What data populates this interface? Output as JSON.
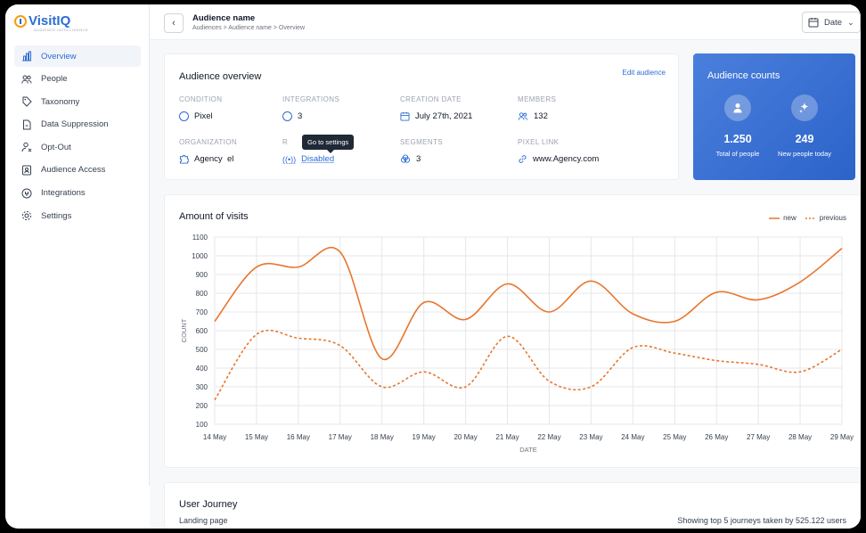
{
  "brand": {
    "name": "VisitIQ",
    "tagline": "AUDIENCE INTELLIGENCE"
  },
  "sidebar": {
    "items": [
      {
        "label": "Overview",
        "icon": "bar-chart-icon",
        "active": true
      },
      {
        "label": "People",
        "icon": "people-icon"
      },
      {
        "label": "Taxonomy",
        "icon": "tag-icon"
      },
      {
        "label": "Data Suppression",
        "icon": "file-icon"
      },
      {
        "label": "Opt-Out",
        "icon": "user-x-icon"
      },
      {
        "label": "Audience Access",
        "icon": "id-card-icon"
      },
      {
        "label": "Integrations",
        "icon": "plug-icon"
      },
      {
        "label": "Settings",
        "icon": "gear-icon"
      }
    ]
  },
  "header": {
    "title": "Audience name",
    "breadcrumb": "Audiences > Audience name > Overview",
    "date_label": "Date"
  },
  "overview": {
    "title": "Audience overview",
    "edit_label": "Edit audience",
    "fields": [
      {
        "label": "CONDITION",
        "value": "Pixel"
      },
      {
        "label": "INTEGRATIONS",
        "value": "3"
      },
      {
        "label": "CREATION DATE",
        "value": "July 27th, 2021"
      },
      {
        "label": "MEMBERS",
        "value": "132"
      },
      {
        "label": "ORGANIZATION",
        "value": "Agency  el"
      },
      {
        "label": "R",
        "value": "Disabled"
      },
      {
        "label": "SEGMENTS",
        "value": "3"
      },
      {
        "label": "PIXEL LINK",
        "value": "www.Agency.com"
      }
    ],
    "tooltip": "Go to settings"
  },
  "counts": {
    "title": "Audience counts",
    "total": "1.250",
    "total_label": "Total of people",
    "new": "249",
    "new_label": "New people today"
  },
  "chart": {
    "title": "Amount of visits"
  },
  "chart_data": {
    "type": "line",
    "xlabel": "DATE",
    "ylabel": "COUNT",
    "ylim": [
      100,
      1100
    ],
    "yticks": [
      "100",
      "200",
      "300",
      "400",
      "500",
      "600",
      "700",
      "800",
      "900",
      "1000",
      "1100"
    ],
    "categories": [
      "14 May",
      "15 May",
      "16 May",
      "17 May",
      "18 May",
      "19 May",
      "20 May",
      "21 May",
      "22 May",
      "23 May",
      "24 May",
      "25 May",
      "26 May",
      "27 May",
      "28 May",
      "29 May"
    ],
    "grid": true,
    "legend": "top-right",
    "series": [
      {
        "name": "new",
        "color": "#e8762d",
        "dashed": false,
        "values": [
          650,
          940,
          940,
          1020,
          450,
          750,
          660,
          850,
          700,
          865,
          690,
          650,
          805,
          765,
          860,
          1040
        ]
      },
      {
        "name": "previous",
        "color": "#e8762d",
        "dashed": true,
        "values": [
          230,
          580,
          560,
          520,
          300,
          380,
          300,
          570,
          330,
          300,
          510,
          480,
          440,
          420,
          380,
          500
        ]
      }
    ]
  },
  "journey": {
    "title": "User Journey",
    "subtitle": "Landing page",
    "info": "Showing top 5 journeys taken by 525.122 users"
  }
}
